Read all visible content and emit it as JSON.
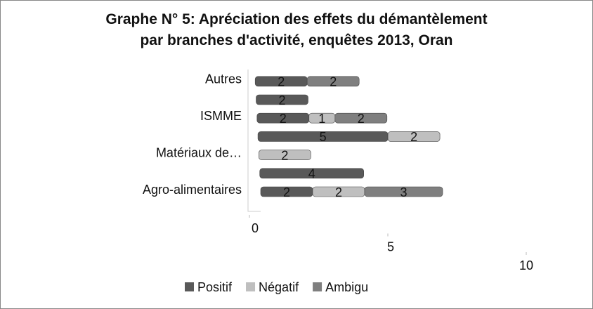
{
  "chart_data": {
    "type": "bar",
    "stacked": true,
    "orientation": "horizontal",
    "title": "Graphe N° 5: Apréciation des effets du démantèlement par branches d'activité, enquêtes 2013, Oran",
    "categories": [
      "Agro-alimentaires",
      null,
      "Matériaux de…",
      null,
      "ISMME",
      null,
      "Autres"
    ],
    "series": [
      {
        "name": "Positif",
        "color": "#595959",
        "values": [
          2,
          4,
          null,
          5,
          2,
          2,
          2
        ]
      },
      {
        "name": "Négatif",
        "color": "#bfbfbf",
        "values": [
          2,
          null,
          2,
          2,
          1,
          null,
          null
        ]
      },
      {
        "name": "Ambigu",
        "color": "#7f7f7f",
        "values": [
          3,
          null,
          null,
          null,
          2,
          null,
          2
        ]
      }
    ],
    "xlim": [
      0,
      10
    ],
    "xticks": [
      0,
      5,
      10
    ],
    "legend": "bottom"
  }
}
